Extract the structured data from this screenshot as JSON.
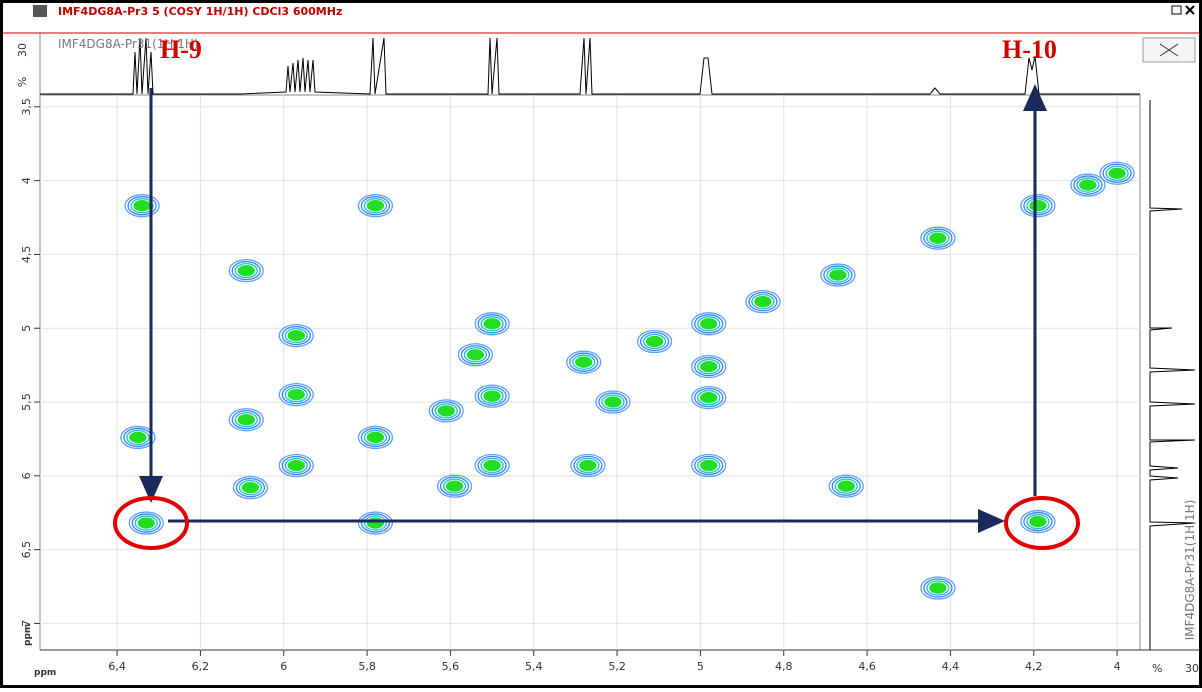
{
  "window": {
    "title": "IMF4DG8A-Pr3 5 (COSY 1H/1H) CDCl3 600MHz"
  },
  "chart_data": {
    "type": "scatter",
    "x_label": "ppm",
    "y_label": "ppm",
    "x": [
      6.34,
      5.78,
      4.19,
      4.07,
      4.0,
      6.09,
      4.43,
      4.67,
      4.85,
      5.97,
      5.97,
      4.98,
      5.5,
      5.11,
      5.28,
      5.54,
      5.5,
      5.61,
      5.21,
      4.98,
      4.98,
      6.09,
      6.35,
      5.78,
      5.97,
      5.5,
      5.27,
      4.98,
      6.08,
      5.59,
      4.65,
      6.33,
      5.78,
      4.19,
      4.43
    ],
    "y": [
      4.17,
      4.17,
      4.17,
      4.03,
      3.95,
      4.61,
      4.39,
      4.64,
      4.82,
      5.05,
      5.45,
      4.97,
      4.97,
      5.09,
      5.23,
      5.18,
      5.46,
      5.56,
      5.5,
      5.47,
      5.26,
      5.62,
      5.74,
      5.74,
      5.93,
      5.93,
      5.93,
      5.93,
      6.08,
      6.07,
      6.07,
      6.32,
      6.32,
      6.31,
      6.76
    ],
    "color": "#22dd22",
    "xlim": [
      6.585,
      3.945
    ],
    "ylim": [
      3.42,
      7.18
    ],
    "xticks": [
      {
        "value": 6.4,
        "label": "6,4"
      },
      {
        "value": 6.2,
        "label": "6,2"
      },
      6,
      {
        "value": 5.8,
        "label": "5,8"
      },
      {
        "value": 5.6,
        "label": "5,6"
      },
      {
        "value": 5.4,
        "label": "5,4"
      },
      {
        "value": 5.2,
        "label": "5,2"
      },
      5,
      {
        "value": 4.8,
        "label": "4,8"
      },
      {
        "value": 4.6,
        "label": "4,6"
      },
      {
        "value": 4.4,
        "label": "4,4"
      },
      {
        "value": 4.2,
        "label": "4,2"
      },
      4
    ],
    "yticks": [
      {
        "value": 3.5,
        "label": "3,5"
      },
      4,
      {
        "value": 4.5,
        "label": "4,5"
      },
      5,
      {
        "value": 5.5,
        "label": "5,5"
      },
      6,
      {
        "value": 6.5,
        "label": "6,5"
      },
      7
    ],
    "grid": true,
    "annotations": [
      "H-9",
      "H-10"
    ],
    "top_trace": {
      "label": "IMF4DG8A-Pr31(1H,1H)",
      "scale_labels": [
        "30",
        "%"
      ]
    },
    "right_trace": {
      "label": "IMF4DG8A-Pr31(1H,1H)",
      "scale_labels": [
        "%",
        "30"
      ]
    }
  }
}
